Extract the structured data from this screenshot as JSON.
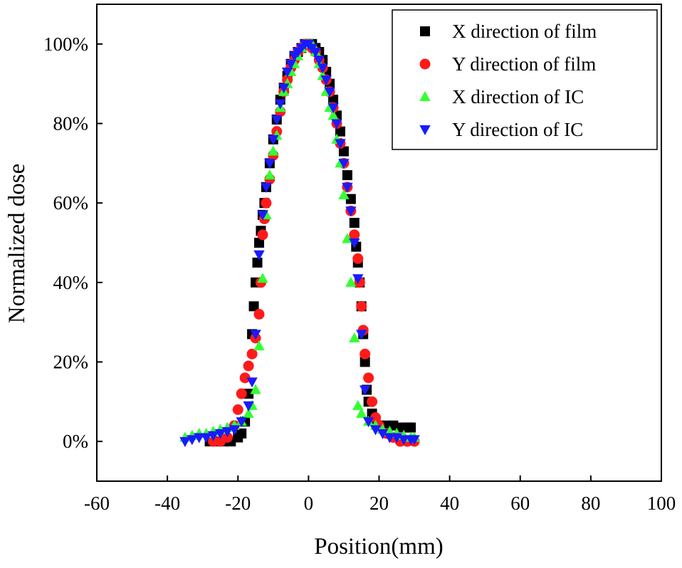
{
  "chart_data": {
    "type": "scatter",
    "title": "",
    "xlabel": "Position(mm)",
    "ylabel": "Normalized dose",
    "xlim": [
      -60,
      100
    ],
    "ylim": [
      -0.1,
      1.1
    ],
    "xticks": [
      -60,
      -40,
      -20,
      0,
      20,
      40,
      60,
      80,
      100
    ],
    "xtick_labels": [
      "-60",
      "-40",
      "-20",
      "0",
      "20",
      "40",
      "60",
      "80",
      "100"
    ],
    "yticks": [
      0,
      0.2,
      0.4,
      0.6,
      0.8,
      1.0
    ],
    "ytick_labels": [
      "0%",
      "20%",
      "40%",
      "60%",
      "80%",
      "100%"
    ],
    "grid": false,
    "legend_position": "top-right",
    "series": [
      {
        "name": "X direction of film",
        "marker": "square",
        "color": "#000000",
        "x": [
          -28,
          -26,
          -24,
          -22,
          -20,
          -19,
          -18,
          -17,
          -16,
          -15.5,
          -15,
          -14.5,
          -14,
          -13.5,
          -13,
          -12.5,
          -12,
          -11,
          -10,
          -9,
          -8,
          -7,
          -6,
          -5,
          -4,
          -3,
          -2,
          -1,
          0,
          1,
          2,
          3,
          4,
          5,
          6,
          7,
          8,
          9,
          10,
          11,
          12,
          13,
          13.5,
          14,
          14.5,
          15,
          15.5,
          16,
          16.5,
          17,
          18,
          19,
          20,
          22,
          24,
          26,
          28,
          29
        ],
        "y": [
          0.0,
          0.0,
          0.0,
          0.0,
          0.01,
          0.02,
          0.05,
          0.12,
          0.27,
          0.34,
          0.4,
          0.45,
          0.5,
          0.53,
          0.57,
          0.6,
          0.64,
          0.7,
          0.76,
          0.81,
          0.86,
          0.89,
          0.92,
          0.95,
          0.97,
          0.98,
          0.99,
          1.0,
          1.0,
          1.0,
          0.99,
          0.98,
          0.96,
          0.93,
          0.9,
          0.86,
          0.82,
          0.78,
          0.73,
          0.67,
          0.61,
          0.55,
          0.49,
          0.45,
          0.4,
          0.34,
          0.27,
          0.2,
          0.13,
          0.1,
          0.07,
          0.05,
          0.04,
          0.04,
          0.04,
          0.035,
          0.035,
          0.035
        ]
      },
      {
        "name": "Y direction of film",
        "marker": "circle",
        "color": "#ff1a1a",
        "x": [
          -27,
          -25,
          -23,
          -21,
          -20,
          -19,
          -18,
          -17,
          -16,
          -15,
          -14,
          -13.5,
          -13,
          -12.5,
          -12,
          -11,
          -10,
          -9,
          -8,
          -7,
          -6,
          -5,
          -4,
          -3,
          -2,
          -1,
          0,
          1,
          2,
          3,
          4,
          5,
          6,
          7,
          8,
          9,
          10,
          11,
          12,
          13,
          14,
          14.5,
          15,
          15.5,
          16,
          17,
          18,
          19,
          20,
          22,
          24,
          26,
          28,
          30
        ],
        "y": [
          0.0,
          0.0,
          0.01,
          0.04,
          0.08,
          0.12,
          0.16,
          0.19,
          0.22,
          0.26,
          0.32,
          0.4,
          0.52,
          0.56,
          0.6,
          0.66,
          0.72,
          0.78,
          0.83,
          0.88,
          0.91,
          0.94,
          0.96,
          0.98,
          0.99,
          1.0,
          1.0,
          0.99,
          0.98,
          0.96,
          0.94,
          0.91,
          0.88,
          0.84,
          0.8,
          0.75,
          0.7,
          0.64,
          0.58,
          0.52,
          0.46,
          0.4,
          0.34,
          0.28,
          0.22,
          0.16,
          0.1,
          0.06,
          0.04,
          0.02,
          0.01,
          0.0,
          0.0,
          0.0
        ]
      },
      {
        "name": "X direction of  IC",
        "marker": "triangle-up",
        "color": "#33ff33",
        "x": [
          -35,
          -33,
          -31,
          -29,
          -27,
          -25,
          -23,
          -21,
          -19,
          -17,
          -16,
          -15,
          -14,
          -13,
          -12,
          -11,
          -10,
          -9,
          -8,
          -7,
          -6,
          -5,
          -4,
          -3,
          -2,
          -1,
          0,
          1,
          2,
          3,
          4,
          5,
          6,
          7,
          8,
          9,
          10,
          11,
          12,
          13,
          14,
          15,
          17,
          19,
          21,
          23,
          25,
          27,
          29,
          30
        ],
        "y": [
          0.01,
          0.015,
          0.02,
          0.02,
          0.025,
          0.03,
          0.035,
          0.04,
          0.05,
          0.07,
          0.09,
          0.13,
          0.24,
          0.41,
          0.57,
          0.67,
          0.73,
          0.77,
          0.84,
          0.88,
          0.9,
          0.93,
          0.95,
          0.97,
          0.99,
          1.0,
          1.0,
          1.0,
          0.98,
          0.95,
          0.92,
          0.88,
          0.84,
          0.82,
          0.76,
          0.7,
          0.62,
          0.51,
          0.4,
          0.26,
          0.09,
          0.07,
          0.05,
          0.04,
          0.03,
          0.025,
          0.02,
          0.015,
          0.01,
          0.01
        ]
      },
      {
        "name": "Y direction of  IC",
        "marker": "triangle-down",
        "color": "#1a1aff",
        "x": [
          -35,
          -33,
          -31,
          -29,
          -27,
          -25,
          -23,
          -21,
          -19,
          -17,
          -16,
          -15,
          -14,
          -13,
          -12,
          -11,
          -10,
          -9,
          -8,
          -7,
          -6,
          -5,
          -4,
          -3,
          -2,
          -1,
          0,
          1,
          2,
          3,
          4,
          5,
          6,
          7,
          8,
          9,
          10,
          11,
          12,
          13,
          14,
          15,
          16,
          17,
          19,
          21,
          23,
          25,
          27,
          29,
          30
        ],
        "y": [
          0.0,
          0.005,
          0.01,
          0.01,
          0.015,
          0.02,
          0.025,
          0.03,
          0.05,
          0.09,
          0.15,
          0.27,
          0.47,
          0.57,
          0.64,
          0.7,
          0.76,
          0.81,
          0.85,
          0.89,
          0.93,
          0.95,
          0.97,
          0.98,
          0.99,
          1.0,
          1.0,
          0.99,
          0.98,
          0.96,
          0.94,
          0.91,
          0.88,
          0.84,
          0.8,
          0.75,
          0.7,
          0.64,
          0.58,
          0.5,
          0.41,
          0.27,
          0.13,
          0.05,
          0.03,
          0.02,
          0.01,
          0.01,
          0.005,
          0.005,
          0.005
        ]
      }
    ]
  }
}
